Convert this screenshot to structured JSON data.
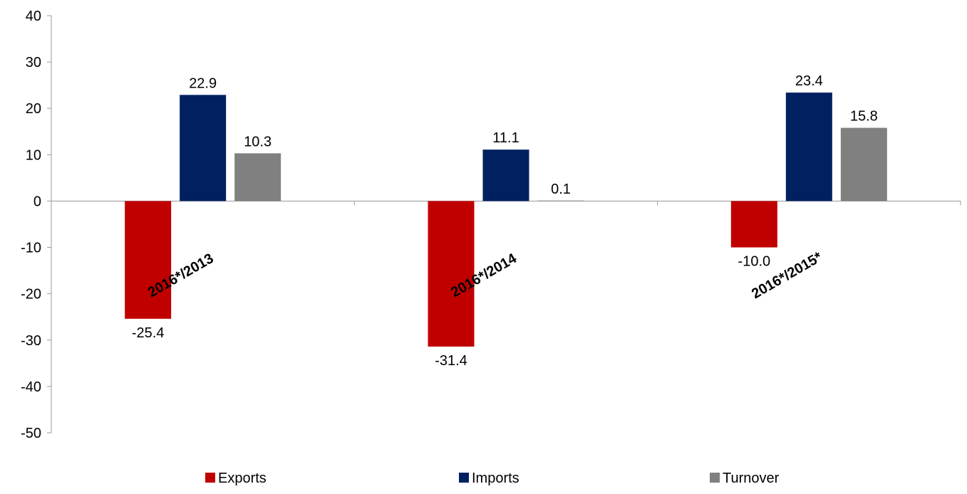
{
  "chart_data": {
    "type": "bar",
    "categories": [
      "2016*/2013",
      "2016*/2014",
      "2016*/2015*"
    ],
    "series": [
      {
        "name": "Exports",
        "values": [
          -25.4,
          -31.4,
          -10.0
        ],
        "labels": [
          "-25.4",
          "-31.4",
          "-10.0"
        ],
        "color": "#c00000"
      },
      {
        "name": "Imports",
        "values": [
          22.9,
          11.1,
          23.4
        ],
        "labels": [
          "22.9",
          "11.1",
          "23.4"
        ],
        "color": "#002060"
      },
      {
        "name": "Turnover",
        "values": [
          10.3,
          0.1,
          15.8
        ],
        "labels": [
          "10.3",
          "0.1",
          "15.8"
        ],
        "color": "#808080"
      }
    ],
    "ylim": [
      -50,
      40
    ],
    "yticks": [
      -50,
      -40,
      -30,
      -20,
      -10,
      0,
      10,
      20,
      30,
      40
    ],
    "ytick_labels": [
      "-50",
      "-40",
      "-30",
      "-20",
      "-10",
      "0",
      "10",
      "20",
      "30",
      "40"
    ],
    "grid": false,
    "legend_position": "bottom",
    "category_label_rotation": -30
  }
}
